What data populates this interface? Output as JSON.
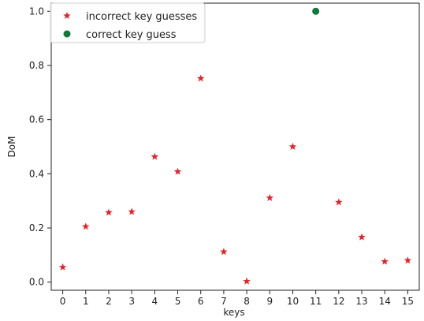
{
  "chart_data": {
    "type": "scatter",
    "xlabel": "keys",
    "ylabel": "DoM",
    "xlim": [
      -0.5,
      15.5
    ],
    "ylim": [
      -0.03,
      1.03
    ],
    "x_ticks": [
      0,
      1,
      2,
      3,
      4,
      5,
      6,
      7,
      8,
      9,
      10,
      11,
      12,
      13,
      14,
      15
    ],
    "y_ticks": [
      0.0,
      0.2,
      0.4,
      0.6,
      0.8,
      1.0
    ],
    "y_tick_labels": [
      "0.0",
      "0.2",
      "0.4",
      "0.6",
      "0.8",
      "1.0"
    ],
    "grid": false,
    "legend_position": "top-left",
    "series": [
      {
        "name": "incorrect key guesses",
        "marker": "star",
        "color": "#e3242b",
        "x": [
          0,
          1,
          2,
          3,
          4,
          5,
          6,
          7,
          8,
          9,
          10,
          12,
          13,
          14,
          15
        ],
        "y": [
          0.055,
          0.205,
          0.257,
          0.26,
          0.463,
          0.408,
          0.752,
          0.112,
          0.003,
          0.311,
          0.5,
          0.295,
          0.166,
          0.076,
          0.08
        ]
      },
      {
        "name": "correct key guess",
        "marker": "circle",
        "color": "#0f7a3a",
        "x": [
          11
        ],
        "y": [
          1.0
        ]
      }
    ]
  }
}
